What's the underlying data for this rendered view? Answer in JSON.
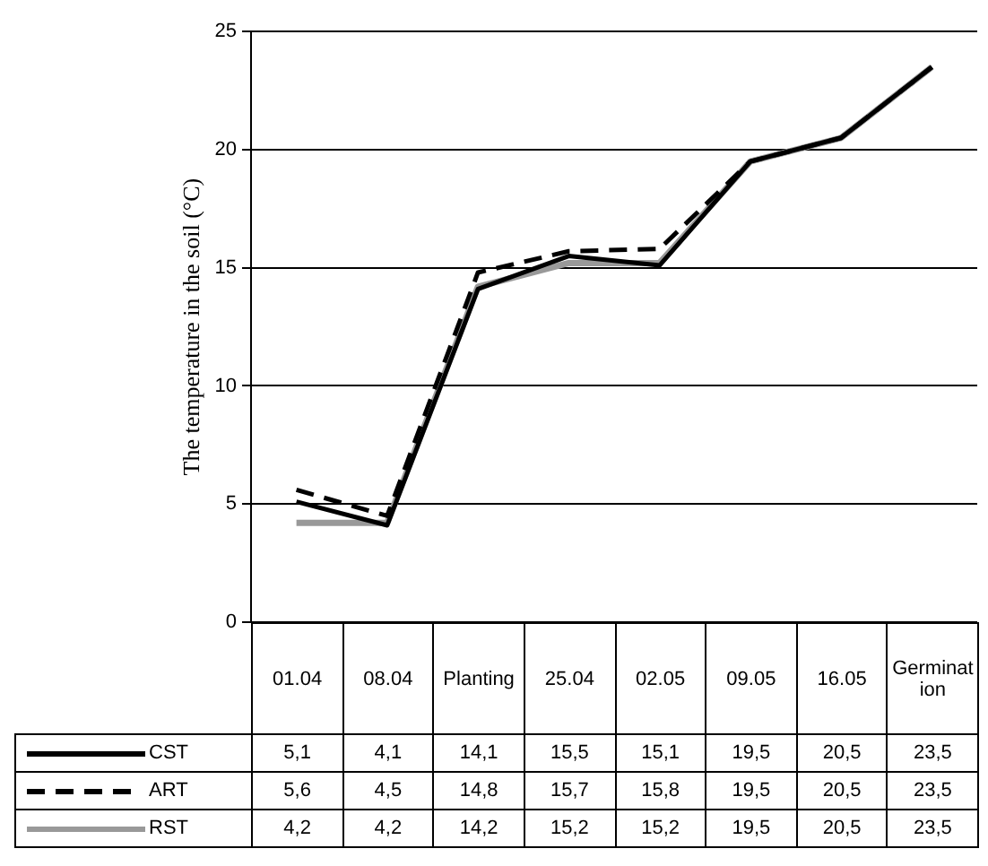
{
  "chart_data": {
    "type": "line",
    "ylabel": "The temperature in the soil (°C)",
    "categories": [
      "01.04",
      "08.04",
      "Planting",
      "25.04",
      "02.05",
      "09.05",
      "16.05",
      "Germination"
    ],
    "ylim": [
      0,
      25
    ],
    "yticks": [
      0,
      5,
      10,
      15,
      20,
      25
    ],
    "grid": "y",
    "legend": "bottom",
    "marker": "none",
    "series": [
      {
        "name": "CST",
        "color": "#000000",
        "line_style": "solid",
        "values": [
          5.1,
          4.1,
          14.1,
          15.5,
          15.1,
          19.5,
          20.5,
          23.5
        ],
        "value_labels": [
          "5,1",
          "4,1",
          "14,1",
          "15,5",
          "15,1",
          "19,5",
          "20,5",
          "23,5"
        ]
      },
      {
        "name": "ART",
        "color": "#000000",
        "line_style": "dashed",
        "values": [
          5.6,
          4.5,
          14.8,
          15.7,
          15.8,
          19.5,
          20.5,
          23.5
        ],
        "value_labels": [
          "5,6",
          "4,5",
          "14,8",
          "15,7",
          "15,8",
          "19,5",
          "20,5",
          "23,5"
        ]
      },
      {
        "name": "RST",
        "color": "#999999",
        "line_style": "solid",
        "values": [
          4.2,
          4.2,
          14.2,
          15.2,
          15.2,
          19.5,
          20.5,
          23.5
        ],
        "value_labels": [
          "4,2",
          "4,2",
          "14,2",
          "15,2",
          "15,2",
          "19,5",
          "20,5",
          "23,5"
        ]
      }
    ]
  }
}
